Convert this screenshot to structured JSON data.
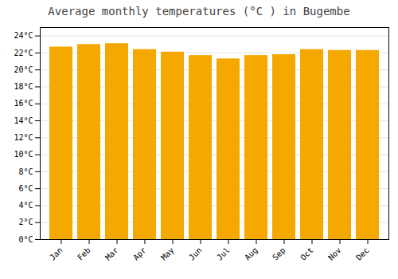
{
  "chart_data": {
    "type": "bar",
    "title": "Average monthly temperatures (°C ) in Bugembe",
    "categories": [
      "Jan",
      "Feb",
      "Mar",
      "Apr",
      "May",
      "Jun",
      "Jul",
      "Aug",
      "Sep",
      "Oct",
      "Nov",
      "Dec"
    ],
    "values": [
      22.7,
      23.0,
      23.1,
      22.4,
      22.1,
      21.7,
      21.3,
      21.7,
      21.8,
      22.4,
      22.3,
      22.3
    ],
    "color": "#F5A800",
    "ylim": [
      0,
      25
    ],
    "yticks": [
      {
        "value": 0,
        "label": "0°C"
      },
      {
        "value": 2,
        "label": "2°C"
      },
      {
        "value": 4,
        "label": "4°C"
      },
      {
        "value": 6,
        "label": "6°C"
      },
      {
        "value": 8,
        "label": "8°C"
      },
      {
        "value": 10,
        "label": "10°C"
      },
      {
        "value": 12,
        "label": "12°C"
      },
      {
        "value": 14,
        "label": "14°C"
      },
      {
        "value": 16,
        "label": "16°C"
      },
      {
        "value": 18,
        "label": "18°C"
      },
      {
        "value": 20,
        "label": "20°C"
      },
      {
        "value": 22,
        "label": "22°C"
      },
      {
        "value": 24,
        "label": "24°C"
      }
    ],
    "grid": true
  }
}
